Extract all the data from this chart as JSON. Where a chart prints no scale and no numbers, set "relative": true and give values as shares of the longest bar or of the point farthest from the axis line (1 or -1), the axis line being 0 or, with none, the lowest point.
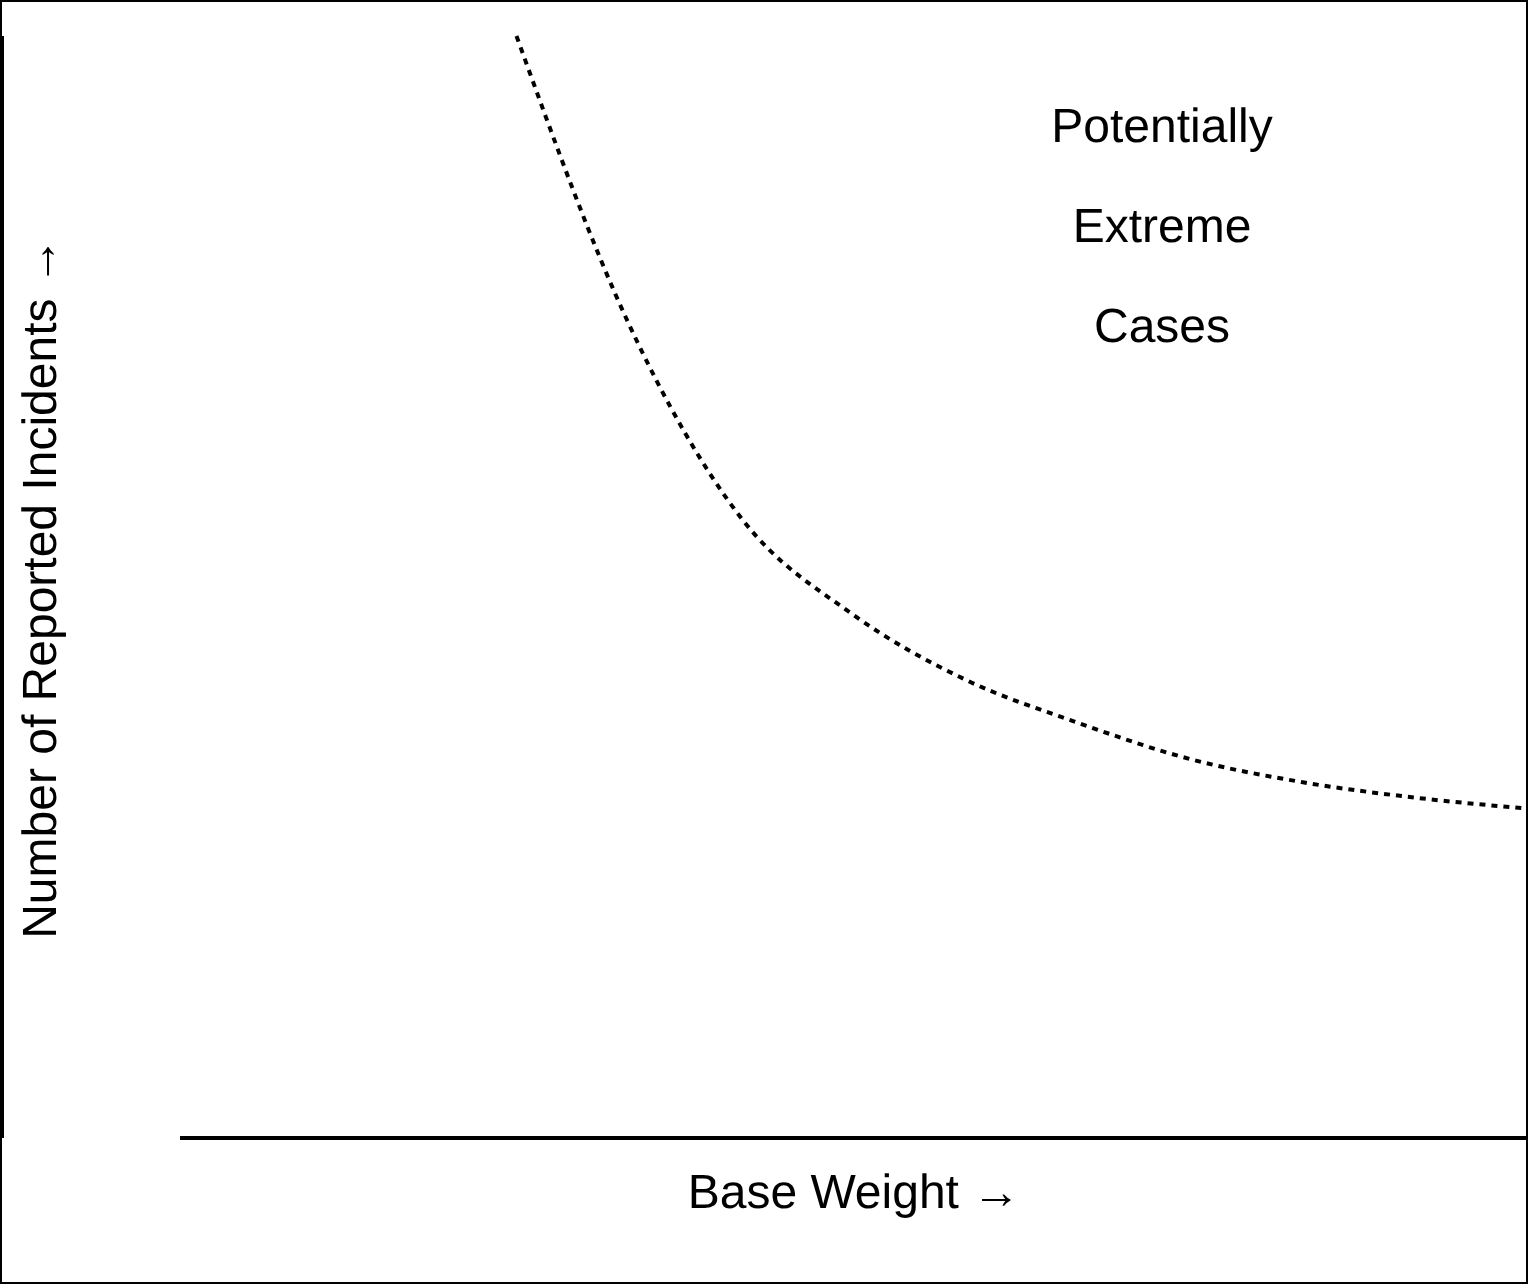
{
  "chart_data": {
    "type": "line",
    "relative": true,
    "xlabel": "Base Weight →",
    "ylabel": "Number of Reported Incidents →",
    "annotations": [
      "Potentially Extreme Cases"
    ],
    "categories": [
      null,
      null,
      null,
      null,
      null,
      null,
      null,
      null,
      null,
      null,
      null,
      null,
      null
    ],
    "series": [
      {
        "color": "#000000",
        "values": [
          null,
          null,
          null,
          1.0,
          0.739,
          0.563,
          0.475,
          0.416,
          0.377,
          0.344,
          0.323,
          0.309,
          0.299
        ]
      }
    ],
    "marker": "none",
    "line_style": "dotted"
  }
}
